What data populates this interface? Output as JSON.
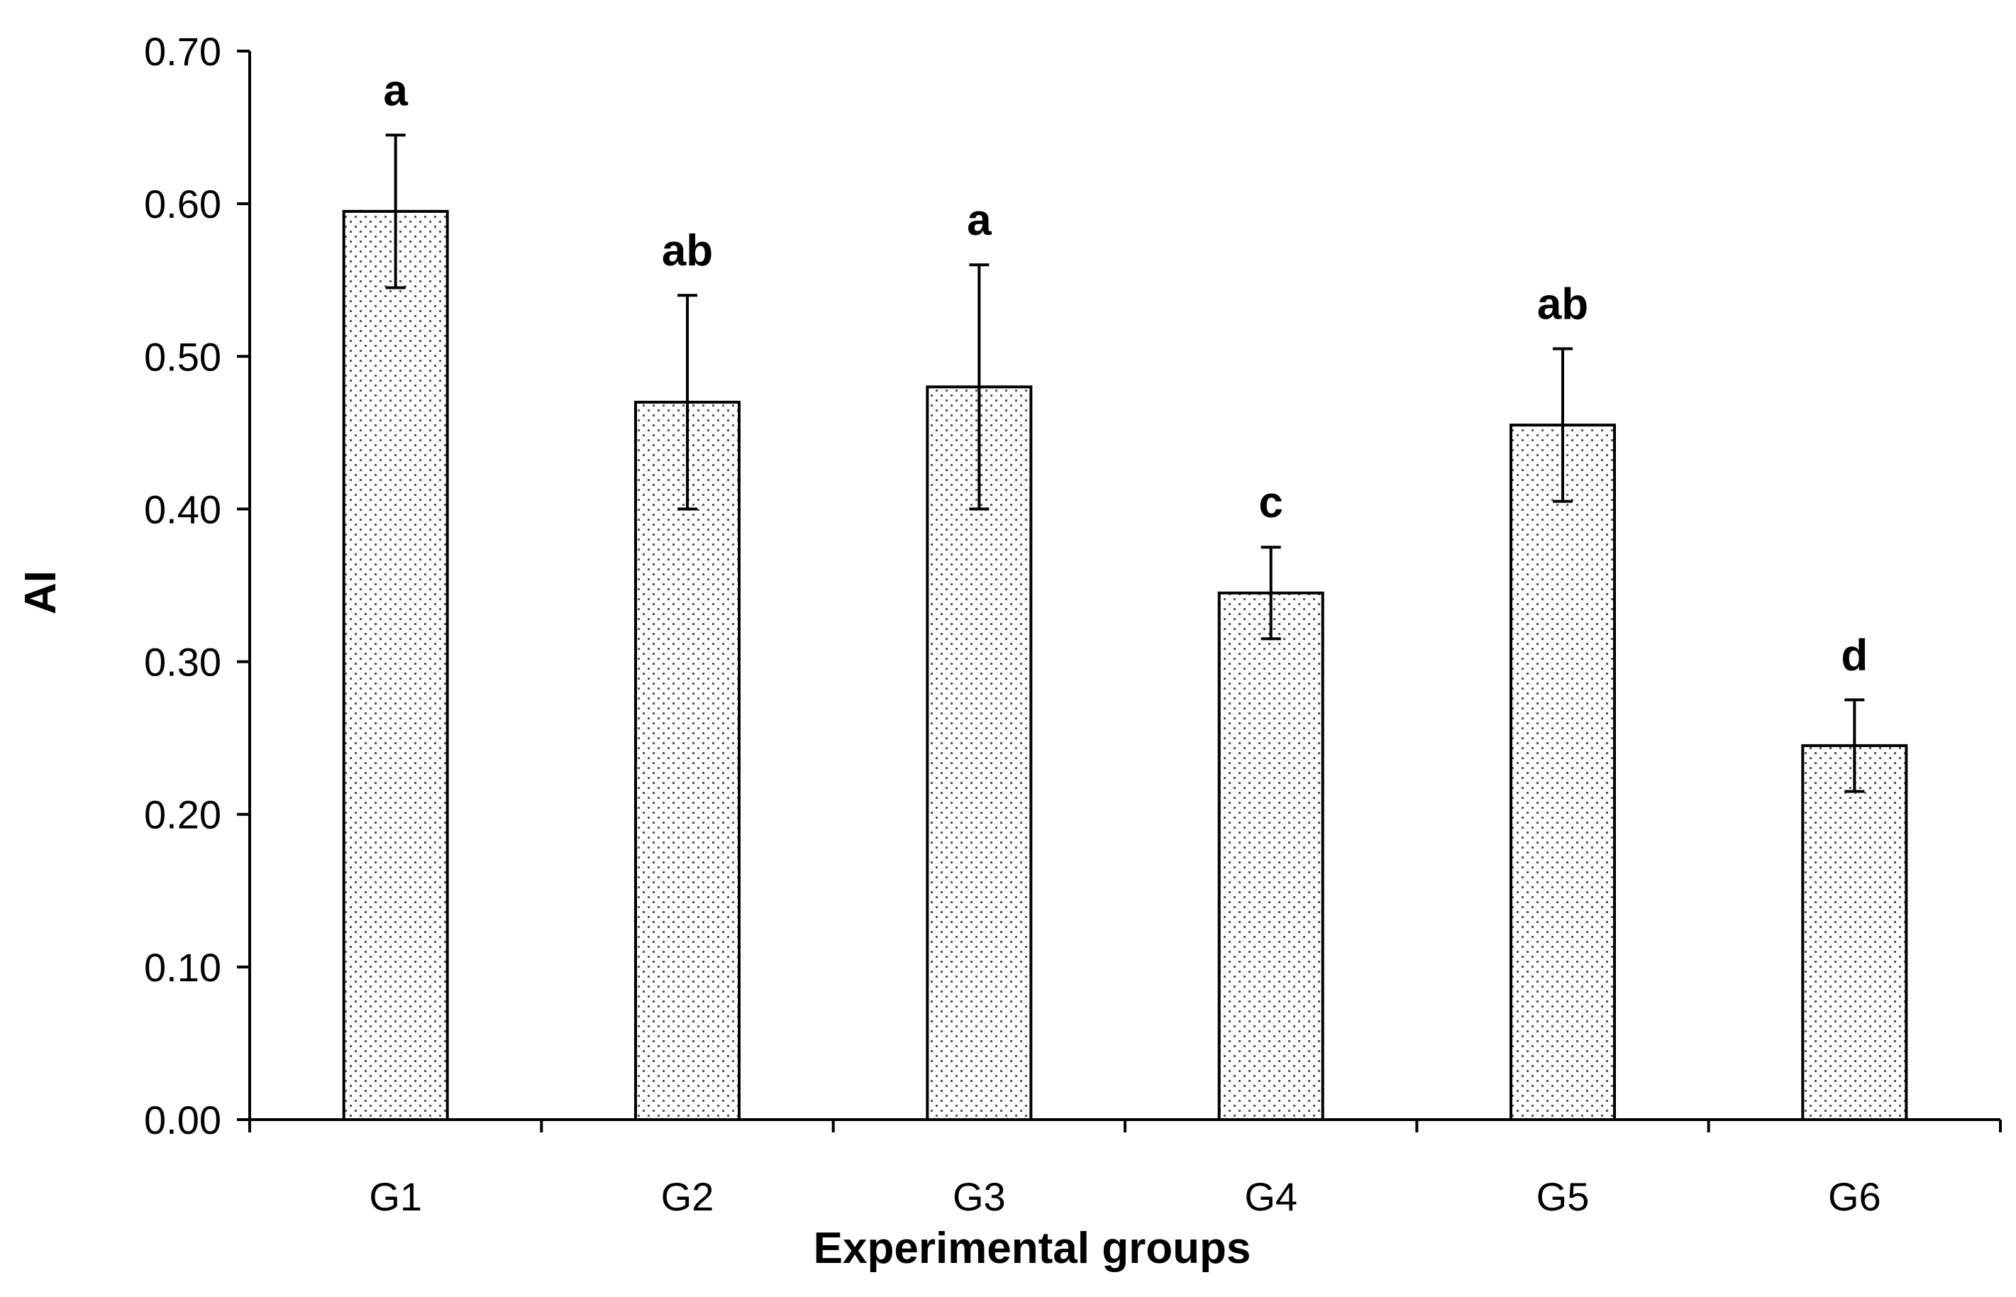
{
  "chart_data": {
    "type": "bar",
    "title": "",
    "xlabel": "Experimental groups",
    "ylabel": "AI",
    "categories": [
      "G1",
      "G2",
      "G3",
      "G4",
      "G5",
      "G6"
    ],
    "values": [
      0.595,
      0.47,
      0.48,
      0.345,
      0.455,
      0.245
    ],
    "error_upper": [
      0.645,
      0.54,
      0.56,
      0.375,
      0.505,
      0.275
    ],
    "error_lower": [
      0.545,
      0.4,
      0.4,
      0.315,
      0.405,
      0.215
    ],
    "significance_labels": [
      "a",
      "ab",
      "a",
      "c",
      "ab",
      "d"
    ],
    "ylim": [
      0,
      0.7
    ],
    "yticks": [
      "0.00",
      "0.10",
      "0.20",
      "0.30",
      "0.40",
      "0.50",
      "0.60",
      "0.70"
    ],
    "grid": false,
    "bar_pattern": "dotted",
    "bar_fill_color": "#ffffff",
    "bar_dot_color": "#555555",
    "bar_edge_color": "#000000"
  }
}
